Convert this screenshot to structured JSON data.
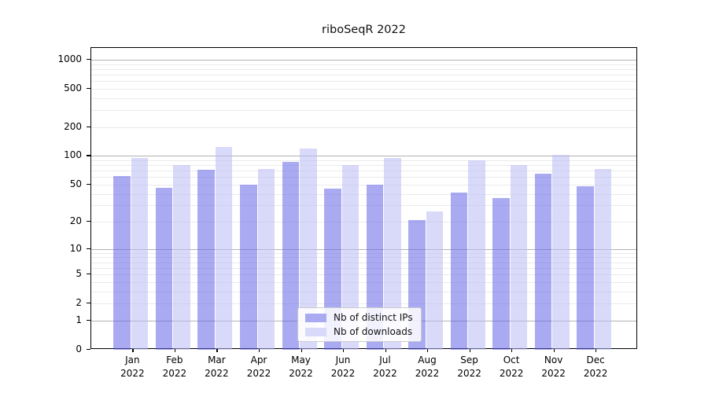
{
  "title": "riboSeqR 2022",
  "legend": {
    "items": [
      {
        "label": "Nb of distinct IPs",
        "color": "#aaaaf3",
        "fill": "rgba(100,100,233,0.55)"
      },
      {
        "label": "Nb of downloads",
        "color": "#d9d9fa",
        "fill": "rgba(186,186,246,0.55)"
      }
    ]
  },
  "chart_data": {
    "type": "bar",
    "title": "riboSeqR 2022",
    "months": [
      "Jan",
      "Feb",
      "Mar",
      "Apr",
      "May",
      "Jun",
      "Jul",
      "Aug",
      "Sep",
      "Oct",
      "Nov",
      "Dec"
    ],
    "year": "2022",
    "series": [
      {
        "name": "Nb of distinct IPs",
        "values": [
          62,
          46,
          72,
          50,
          86,
          45,
          50,
          21,
          41,
          36,
          65,
          48
        ]
      },
      {
        "name": "Nb of downloads",
        "values": [
          95,
          80,
          125,
          73,
          120,
          80,
          96,
          26,
          90,
          80,
          102,
          73
        ]
      }
    ],
    "yticks": [
      0,
      1,
      2,
      5,
      10,
      20,
      50,
      100,
      200,
      500,
      1000
    ],
    "ylim": [
      0,
      1000
    ],
    "yscale": "log10(value+1)",
    "grid": "horizontal, minor lines each decade",
    "legend_position": "bottom-center-inside",
    "colors": {
      "distinct_ips": "#aaaaf3",
      "downloads": "#d9d9fa",
      "major_grid": "#b3b3b3",
      "minor_grid": "#ebebeb"
    }
  }
}
